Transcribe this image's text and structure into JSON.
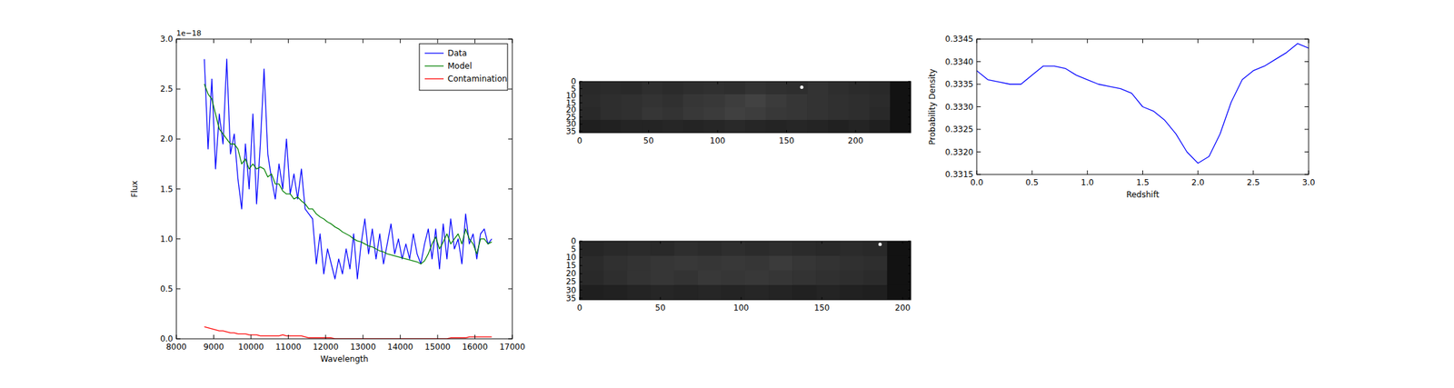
{
  "chart_data": [
    {
      "type": "line",
      "xlabel": "Wavelength",
      "ylabel": "Flux",
      "annotation": "1e−18",
      "xlim": [
        8000,
        17000
      ],
      "ylim": [
        0,
        3.0
      ],
      "xticks": [
        8000,
        9000,
        10000,
        11000,
        12000,
        13000,
        14000,
        15000,
        16000,
        17000
      ],
      "yticks": [
        {
          "value": 0,
          "label": "0.0"
        },
        0.5,
        {
          "value": 1,
          "label": "1.0"
        },
        1.5,
        {
          "value": 2,
          "label": "2.0"
        },
        2.5,
        {
          "value": 3,
          "label": "3.0"
        }
      ],
      "legend": "upper right",
      "x": [
        8750,
        8850,
        8950,
        9050,
        9150,
        9250,
        9350,
        9450,
        9550,
        9650,
        9750,
        9850,
        9950,
        10050,
        10150,
        10250,
        10350,
        10450,
        10550,
        10650,
        10750,
        10850,
        10950,
        11050,
        11150,
        11250,
        11350,
        11450,
        11550,
        11650,
        11750,
        11850,
        11950,
        12050,
        12150,
        12250,
        12350,
        12450,
        12550,
        12650,
        12750,
        12850,
        12950,
        13050,
        13150,
        13250,
        13350,
        13450,
        13550,
        13650,
        13750,
        13850,
        13950,
        14050,
        14150,
        14250,
        14350,
        14450,
        14550,
        14650,
        14750,
        14850,
        14950,
        15050,
        15150,
        15250,
        15350,
        15450,
        15550,
        15650,
        15750,
        15850,
        15950,
        16050,
        16150,
        16250,
        16350,
        16450
      ],
      "series": [
        {
          "name": "Data",
          "color": "#0000ff",
          "values": [
            2.8,
            1.9,
            2.6,
            1.7,
            2.25,
            1.95,
            2.8,
            1.85,
            2.05,
            1.6,
            1.3,
            1.95,
            1.5,
            2.25,
            1.35,
            1.95,
            2.7,
            1.85,
            1.6,
            1.4,
            1.75,
            1.5,
            2.0,
            1.45,
            1.65,
            1.4,
            1.7,
            1.3,
            1.25,
            1.2,
            0.75,
            1.05,
            0.65,
            0.9,
            0.75,
            0.6,
            0.8,
            0.65,
            0.9,
            0.7,
            1.05,
            0.6,
            0.95,
            1.2,
            0.85,
            1.1,
            0.8,
            1.05,
            0.75,
            0.95,
            1.15,
            0.85,
            1.0,
            0.8,
            0.95,
            0.8,
            1.05,
            0.85,
            0.75,
            0.95,
            1.1,
            0.8,
            1.1,
            0.7,
            1.15,
            0.8,
            1.2,
            0.9,
            1.0,
            0.75,
            1.25,
            0.95,
            1.05,
            0.8,
            1.05,
            1.1,
            0.95,
            1.0
          ]
        },
        {
          "name": "Model",
          "color": "#008000",
          "values": [
            2.55,
            2.45,
            2.4,
            2.25,
            2.1,
            2.05,
            2.0,
            1.95,
            1.95,
            1.9,
            1.75,
            1.8,
            1.7,
            1.75,
            1.7,
            1.72,
            1.7,
            1.62,
            1.65,
            1.55,
            1.55,
            1.48,
            1.45,
            1.45,
            1.4,
            1.42,
            1.38,
            1.35,
            1.3,
            1.3,
            1.25,
            1.22,
            1.2,
            1.17,
            1.15,
            1.12,
            1.1,
            1.07,
            1.05,
            1.03,
            1.0,
            0.98,
            0.97,
            0.95,
            0.93,
            0.92,
            0.9,
            0.88,
            0.87,
            0.85,
            0.84,
            0.83,
            0.82,
            0.81,
            0.8,
            0.79,
            0.78,
            0.77,
            0.75,
            0.78,
            0.85,
            0.95,
            1.02,
            0.9,
            0.97,
            1.05,
            0.95,
            1.0,
            1.05,
            0.95,
            1.1,
            1.0,
            0.95,
            0.85,
            1.0,
            1.0,
            0.95,
            0.97
          ]
        },
        {
          "name": "Contamination",
          "color": "#ff0000",
          "values": [
            0.12,
            0.11,
            0.1,
            0.09,
            0.08,
            0.08,
            0.07,
            0.06,
            0.06,
            0.05,
            0.05,
            0.05,
            0.04,
            0.04,
            0.04,
            0.03,
            0.03,
            0.03,
            0.03,
            0.03,
            0.03,
            0.04,
            0.03,
            0.03,
            0.03,
            0.03,
            0.03,
            0.02,
            0.01,
            0.01,
            0.01,
            0.01,
            0.01,
            0.01,
            0.01,
            0.0,
            0.0,
            0.0,
            0.0,
            0.0,
            0.0,
            0.0,
            0.0,
            0.0,
            0.0,
            0.0,
            0.0,
            0.0,
            0.0,
            0.0,
            0.0,
            0.0,
            0.0,
            0.0,
            0.0,
            0.0,
            0.0,
            0.0,
            0.0,
            0.0,
            0.0,
            0.0,
            0.0,
            0.0,
            0.0,
            0.0,
            0.01,
            0.01,
            0.01,
            0.01,
            0.01,
            0.02,
            0.02,
            0.02,
            0.02,
            0.02,
            0.02,
            0.02
          ]
        }
      ]
    },
    {
      "type": "image",
      "xlim": [
        0,
        240
      ],
      "ylim": [
        36,
        0
      ],
      "xticks": [
        0,
        50,
        100,
        150,
        200
      ],
      "yticks": [
        0,
        5,
        10,
        15,
        20,
        25,
        30,
        35
      ],
      "cells": [
        [
          0.16,
          0.17,
          0.16,
          0.18,
          0.17,
          0.18,
          0.19,
          0.18,
          0.2,
          0.19,
          0.18,
          0.2,
          0.18,
          0.17,
          0.16,
          0.07
        ],
        [
          0.17,
          0.18,
          0.19,
          0.2,
          0.19,
          0.21,
          0.22,
          0.24,
          0.26,
          0.23,
          0.21,
          0.2,
          0.19,
          0.18,
          0.17,
          0.07
        ],
        [
          0.16,
          0.18,
          0.19,
          0.21,
          0.2,
          0.22,
          0.23,
          0.25,
          0.24,
          0.22,
          0.21,
          0.2,
          0.19,
          0.18,
          0.16,
          0.07
        ],
        [
          0.12,
          0.13,
          0.14,
          0.14,
          0.15,
          0.14,
          0.15,
          0.16,
          0.15,
          0.14,
          0.15,
          0.14,
          0.13,
          0.14,
          0.12,
          0.07
        ]
      ],
      "points": [
        {
          "x": 161,
          "y": 4
        }
      ]
    },
    {
      "type": "image",
      "xlim": [
        0,
        205
      ],
      "ylim": [
        36,
        0
      ],
      "xticks": [
        0,
        50,
        100,
        150,
        200
      ],
      "yticks": [
        0,
        5,
        10,
        15,
        20,
        25,
        30,
        35
      ],
      "cells": [
        [
          0.15,
          0.16,
          0.17,
          0.16,
          0.18,
          0.17,
          0.18,
          0.17,
          0.18,
          0.17,
          0.16,
          0.17,
          0.16,
          0.07
        ],
        [
          0.17,
          0.19,
          0.2,
          0.21,
          0.22,
          0.21,
          0.22,
          0.21,
          0.23,
          0.21,
          0.2,
          0.19,
          0.18,
          0.07
        ],
        [
          0.16,
          0.18,
          0.2,
          0.21,
          0.2,
          0.22,
          0.21,
          0.22,
          0.21,
          0.2,
          0.19,
          0.18,
          0.17,
          0.07
        ],
        [
          0.12,
          0.13,
          0.14,
          0.15,
          0.14,
          0.15,
          0.14,
          0.15,
          0.14,
          0.13,
          0.14,
          0.13,
          0.12,
          0.07
        ]
      ],
      "points": [
        {
          "x": 186,
          "y": 2
        }
      ]
    },
    {
      "type": "line",
      "xlabel": "Redshift",
      "ylabel": "Probability Density",
      "xlim": [
        0,
        3
      ],
      "ylim": [
        0.3315,
        0.3345
      ],
      "xticks": [
        {
          "value": 0,
          "label": "0.0"
        },
        0.5,
        {
          "value": 1,
          "label": "1.0"
        },
        1.5,
        {
          "value": 2,
          "label": "2.0"
        },
        2.5,
        {
          "value": 3,
          "label": "3.0"
        }
      ],
      "yticks": [
        0.3315,
        {
          "value": 0.332,
          "label": "0.3320"
        },
        0.3325,
        {
          "value": 0.333,
          "label": "0.3330"
        },
        0.3335,
        {
          "value": 0.334,
          "label": "0.3340"
        },
        0.3345
      ],
      "x": [
        0,
        0.1,
        0.2,
        0.3,
        0.4,
        0.5,
        0.6,
        0.7,
        0.8,
        0.9,
        1.0,
        1.1,
        1.2,
        1.3,
        1.4,
        1.5,
        1.6,
        1.7,
        1.8,
        1.9,
        2.0,
        2.1,
        2.2,
        2.3,
        2.4,
        2.5,
        2.6,
        2.7,
        2.8,
        2.9,
        3.0
      ],
      "series": [
        {
          "color": "#0000ff",
          "values": [
            0.3338,
            0.3336,
            0.33355,
            0.3335,
            0.3335,
            0.3337,
            0.3339,
            0.3339,
            0.33385,
            0.3337,
            0.3336,
            0.3335,
            0.33345,
            0.3334,
            0.3333,
            0.333,
            0.3329,
            0.3327,
            0.3324,
            0.332,
            0.33175,
            0.3319,
            0.3324,
            0.3331,
            0.3336,
            0.3338,
            0.3339,
            0.33405,
            0.3342,
            0.3344,
            0.3343
          ]
        }
      ]
    }
  ]
}
